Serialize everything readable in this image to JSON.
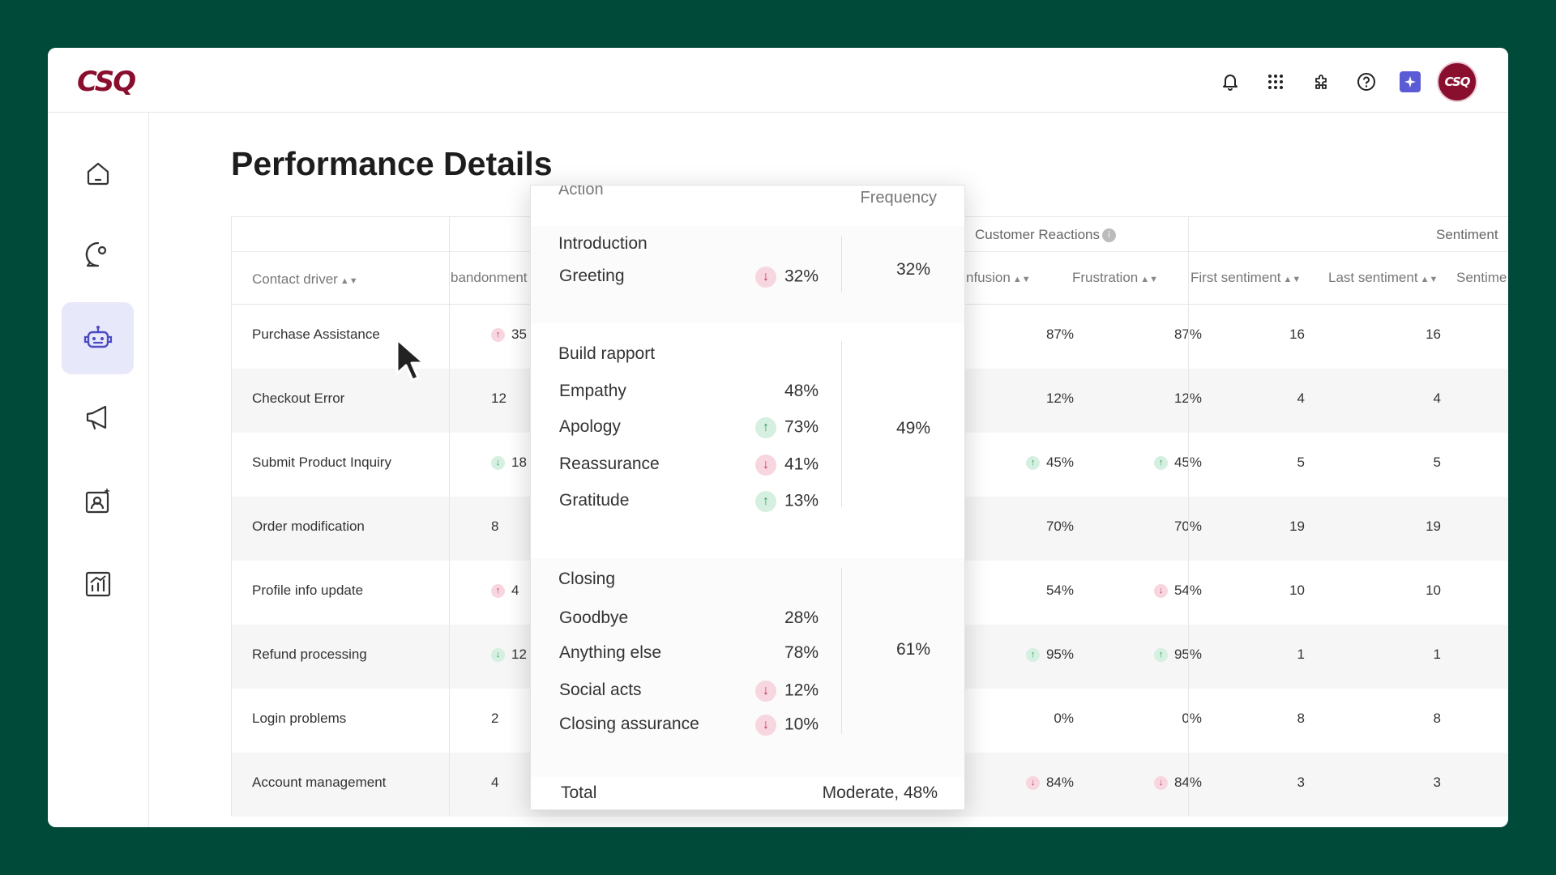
{
  "app": {
    "logo": "CSQ",
    "avatar": "CSQ"
  },
  "topbar": {
    "icons": [
      "bell-icon",
      "apps-grid-icon",
      "puzzle-icon",
      "help-icon",
      "sparkle-icon"
    ]
  },
  "sidebar": {
    "items": [
      {
        "icon": "home-icon"
      },
      {
        "icon": "chat-icon"
      },
      {
        "icon": "bot-icon",
        "active": true
      },
      {
        "icon": "megaphone-icon"
      },
      {
        "icon": "contact-card-icon"
      },
      {
        "icon": "analytics-icon"
      }
    ]
  },
  "page": {
    "title": "Performance Details"
  },
  "table": {
    "groups": {
      "customer_reactions": "Customer Reactions",
      "sentiment": "Sentiment"
    },
    "columns": {
      "contact_driver": "Contact driver",
      "abandonment": "bandonment",
      "confusion": "nfusion",
      "frustration": "Frustration",
      "first_sentiment": "First sentiment",
      "last_sentiment": "Last sentiment",
      "sentiment_cut": "Sentime"
    },
    "rows": [
      {
        "driver": "Purchase Assistance",
        "aband": "35",
        "aband_badge": "up-bad",
        "confusion": "87%",
        "frustration": "87%",
        "first": "16",
        "last": "16"
      },
      {
        "driver": "Checkout Error",
        "aband": "12",
        "confusion": "12%",
        "frustration": "12%",
        "first": "4",
        "last": "4"
      },
      {
        "driver": "Submit Product Inquiry",
        "aband": "18",
        "aband_badge": "down-good",
        "confusion": "45%",
        "confusion_badge": "up-good",
        "frustration": "45%",
        "frustration_badge": "up-good",
        "first": "5",
        "last": "5"
      },
      {
        "driver": "Order modification",
        "aband": "8",
        "confusion": "70%",
        "frustration": "70%",
        "first": "19",
        "last": "19"
      },
      {
        "driver": "Profile info update",
        "aband": "4",
        "aband_badge": "up-bad",
        "confusion": "54%",
        "frustration": "54%",
        "frustration_badge": "down-bad",
        "first": "10",
        "last": "10"
      },
      {
        "driver": "Refund processing",
        "aband": "12",
        "aband_badge": "down-good",
        "confusion": "95%",
        "confusion_badge": "up-good",
        "frustration": "95%",
        "frustration_badge": "up-good",
        "first": "1",
        "last": "1"
      },
      {
        "driver": "Login problems",
        "aband": "2",
        "confusion": "0%",
        "frustration": "0%",
        "first": "8",
        "last": "8"
      },
      {
        "driver": "Account management",
        "aband": "4",
        "confusion": "84%",
        "confusion_badge": "down-bad",
        "frustration": "84%",
        "frustration_badge": "down-bad",
        "first": "3",
        "last": "3"
      }
    ]
  },
  "popup": {
    "head_action": "Action",
    "head_freq": "Frequency",
    "sections": [
      {
        "title": "Introduction",
        "freq": "32%",
        "items": [
          {
            "label": "Greeting",
            "value": "32%",
            "badge": "down"
          }
        ]
      },
      {
        "title": "Build rapport",
        "freq": "49%",
        "items": [
          {
            "label": "Empathy",
            "value": "48%"
          },
          {
            "label": "Apology",
            "value": "73%",
            "badge": "up"
          },
          {
            "label": "Reassurance",
            "value": "41%",
            "badge": "down"
          },
          {
            "label": "Gratitude",
            "value": "13%",
            "badge": "up"
          }
        ]
      },
      {
        "title": "Closing",
        "freq": "61%",
        "items": [
          {
            "label": "Goodbye",
            "value": "28%"
          },
          {
            "label": "Anything else",
            "value": "78%"
          },
          {
            "label": "Social acts",
            "value": "12%",
            "badge": "down"
          },
          {
            "label": "Closing assurance",
            "value": "10%",
            "badge": "down"
          }
        ]
      }
    ],
    "total_label": "Total",
    "total_value": "Moderate, 48%"
  }
}
